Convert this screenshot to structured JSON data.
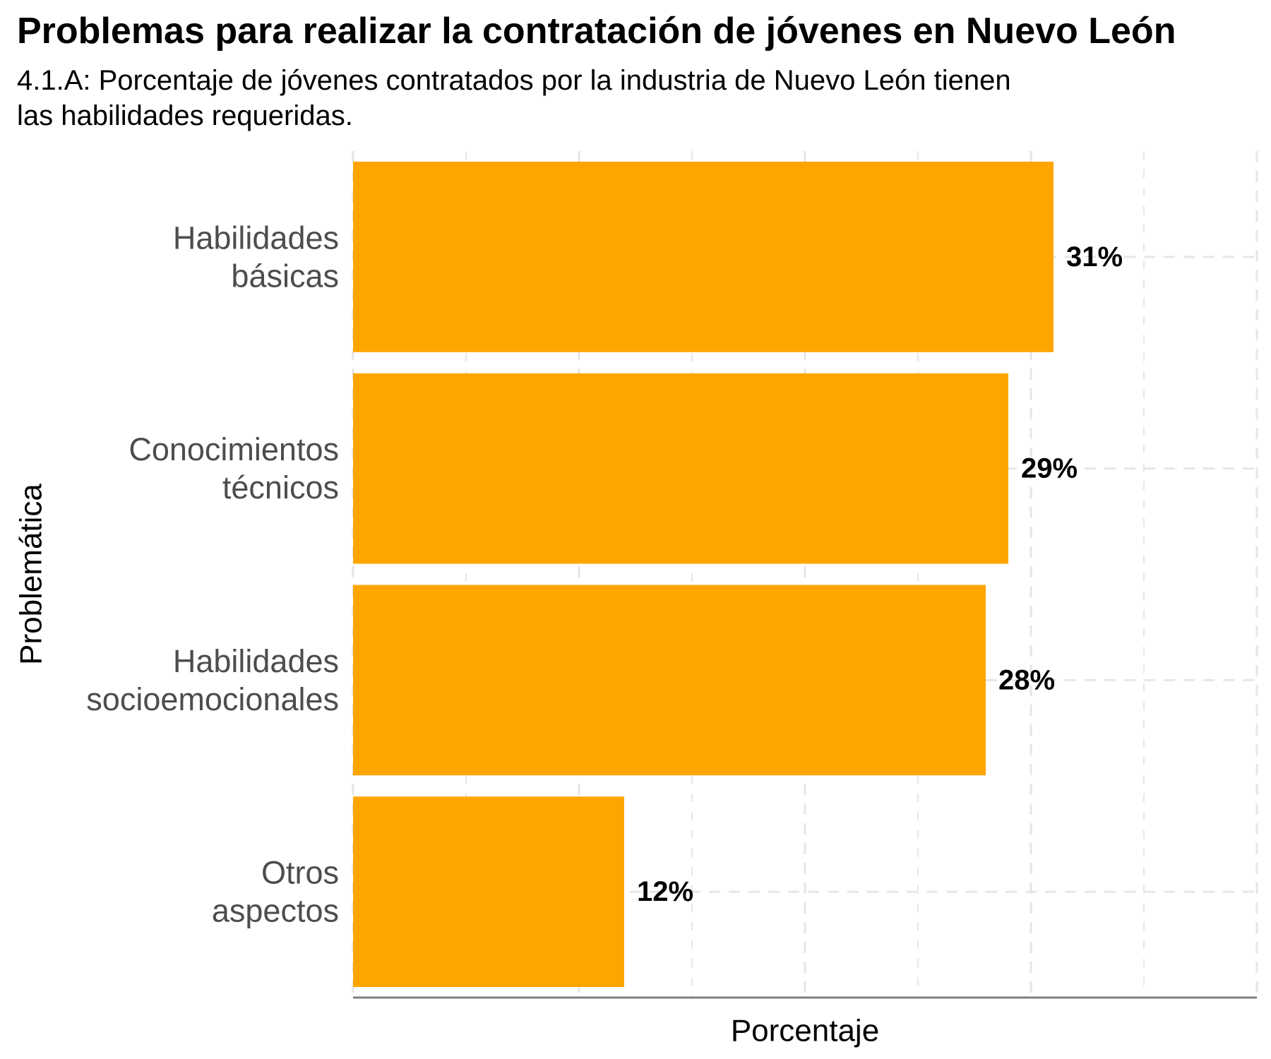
{
  "header": {
    "title": "Problemas para realizar la contratación de jóvenes en Nuevo León",
    "subtitle_line1": "4.1.A: Porcentaje de jóvenes contratados por la industria de Nuevo León tienen",
    "subtitle_line2": "las habilidades requeridas."
  },
  "colors": {
    "bar": "#FFA500",
    "grid": "#e6e6e6",
    "axis": "#7f7f7f"
  },
  "chart_data": {
    "type": "bar",
    "orientation": "horizontal",
    "title": "Problemas para realizar la contratación de jóvenes en Nuevo León",
    "subtitle": "4.1.A: Porcentaje de jóvenes contratados por la industria de Nuevo León tienen las habilidades requeridas.",
    "xlabel": "Porcentaje",
    "ylabel": "Problemática",
    "xlim": [
      0,
      40
    ],
    "grid": true,
    "categories": [
      [
        "Habilidades",
        "básicas"
      ],
      [
        "Conocimientos",
        "técnicos"
      ],
      [
        "Habilidades",
        "socioemocionales"
      ],
      [
        "Otros",
        "aspectos"
      ]
    ],
    "values": [
      31,
      29,
      28,
      12
    ],
    "data_labels": [
      "31%",
      "29%",
      "28%",
      "12%"
    ]
  }
}
